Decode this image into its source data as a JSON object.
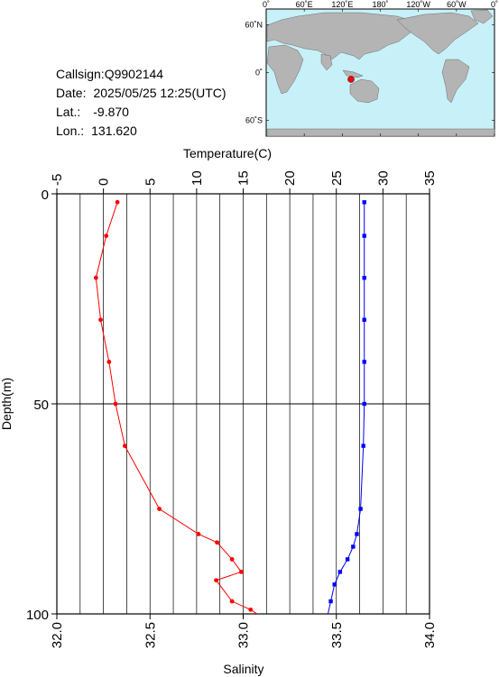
{
  "station": {
    "callsign_label": "Callsign:",
    "callsign": "Q9902144",
    "date_label": "Date:",
    "date": "2025/05/25 12:25(UTC)",
    "lat_label": "Lat.:",
    "lat": "-9.870",
    "lon_label": "Lon.:",
    "lon": "131.620"
  },
  "map": {
    "lon_ticks": [
      "0˚",
      "60˚E",
      "120˚E",
      "180˚",
      "120˚W",
      "60˚W",
      "0˚"
    ],
    "lat_ticks": [
      "60˚N",
      "0˚",
      "60˚S"
    ],
    "ocean_color": "#c8f0f8",
    "land_color": "#b4b4b4",
    "marker_color": "#ff0000",
    "marker_lon": 131.62,
    "marker_lat": -9.87
  },
  "chart_data": {
    "type": "line",
    "ylabel": "Depth(m)",
    "ylim": [
      0,
      100
    ],
    "y_ticks": [
      0,
      50,
      100
    ],
    "temperature_axis": {
      "label": "Temperature(C)",
      "lim": [
        -5,
        35
      ],
      "ticks": [
        -5,
        0,
        5,
        10,
        15,
        20,
        25,
        30,
        35
      ],
      "color": "#ff0000"
    },
    "salinity_axis": {
      "label": "Salinity",
      "lim": [
        32.0,
        34.0
      ],
      "ticks": [
        "32.0",
        "32.5",
        "33.0",
        "33.5",
        "34.0"
      ],
      "color": "#0000ff"
    },
    "grid": true,
    "series": [
      {
        "axis": "temperature",
        "color": "#ff0000",
        "points": [
          [
            1.5,
            2
          ],
          [
            0.3,
            10
          ],
          [
            -0.8,
            20
          ],
          [
            -0.3,
            30
          ],
          [
            0.6,
            40
          ],
          [
            1.3,
            50
          ],
          [
            2.3,
            60
          ],
          [
            6.0,
            75
          ],
          [
            10.2,
            81
          ],
          [
            12.2,
            83
          ],
          [
            13.8,
            87
          ],
          [
            14.8,
            90
          ],
          [
            12.1,
            92
          ],
          [
            13.8,
            97
          ],
          [
            15.8,
            99
          ],
          [
            17.2,
            101
          ]
        ]
      },
      {
        "axis": "salinity",
        "color": "#0000ff",
        "points": [
          [
            33.65,
            2
          ],
          [
            33.65,
            10
          ],
          [
            33.65,
            20
          ],
          [
            33.65,
            30
          ],
          [
            33.65,
            40
          ],
          [
            33.65,
            50
          ],
          [
            33.645,
            60
          ],
          [
            33.63,
            75
          ],
          [
            33.61,
            81
          ],
          [
            33.59,
            84
          ],
          [
            33.56,
            87
          ],
          [
            33.52,
            90
          ],
          [
            33.49,
            93
          ],
          [
            33.47,
            97
          ],
          [
            33.45,
            101
          ]
        ]
      }
    ]
  }
}
